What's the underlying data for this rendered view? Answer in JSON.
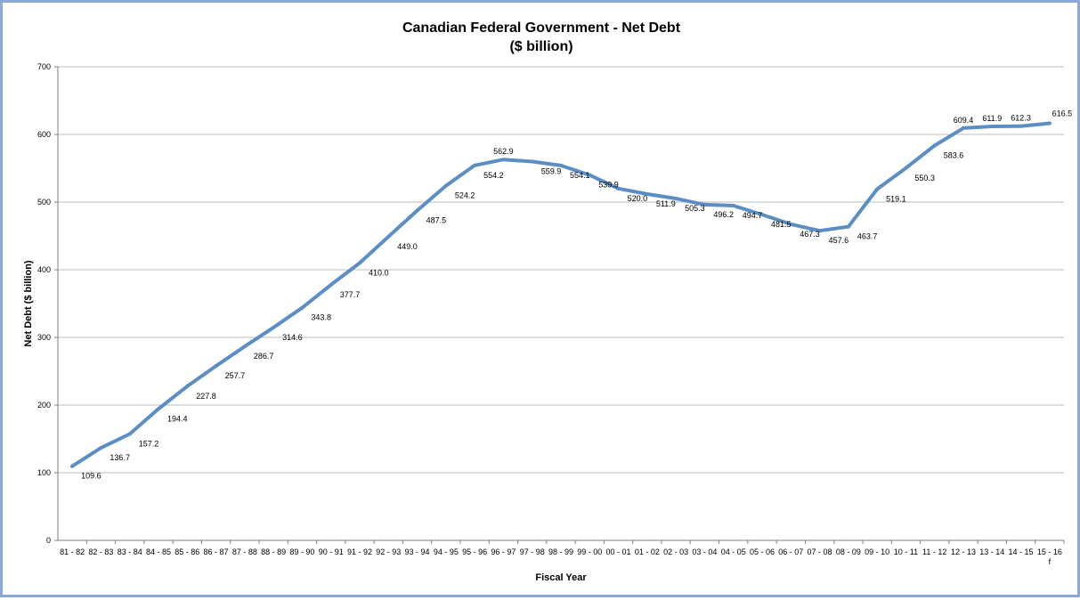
{
  "chart_data": {
    "type": "line",
    "title": "Canadian Federal Government - Net Debt",
    "subtitle": "($ billion)",
    "xlabel": "Fiscal Year",
    "ylabel": "Net Debt ($ billion)",
    "ylim": [
      0,
      700
    ],
    "yticks": [
      0,
      100,
      200,
      300,
      400,
      500,
      600,
      700
    ],
    "grid": true,
    "line_color": "#5b8ec4",
    "categories": [
      "81 - 82",
      "82 - 83",
      "83 - 84",
      "84 - 85",
      "85 - 86",
      "86 - 87",
      "87 - 88",
      "88 - 89",
      "89 - 90",
      "90 - 91",
      "91 - 92",
      "92 - 93",
      "93 - 94",
      "94 - 95",
      "95 - 96",
      "96 - 97",
      "97 - 98",
      "98 - 99",
      "99 - 00",
      "00 - 01",
      "01 - 02",
      "02 - 03",
      "03 - 04",
      "04 - 05",
      "05 - 06",
      "06 - 07",
      "07 - 08",
      "08 - 09",
      "09 - 10",
      "10 - 11",
      "11 - 12",
      "12 - 13",
      "13 - 14",
      "14 - 15",
      "15 - 16 f"
    ],
    "values": [
      109.6,
      136.7,
      157.2,
      194.4,
      227.8,
      257.7,
      286.7,
      314.6,
      343.8,
      377.7,
      410.0,
      449.0,
      487.5,
      524.2,
      554.2,
      562.9,
      559.9,
      554.1,
      539.9,
      520.0,
      511.9,
      505.3,
      496.2,
      494.7,
      481.5,
      467.3,
      457.6,
      463.7,
      519.1,
      550.3,
      583.6,
      609.4,
      611.9,
      612.3,
      616.5
    ],
    "value_labels": [
      "109.6",
      "136.7",
      "157.2",
      "194.4",
      "227.8",
      "257.7",
      "286.7",
      "314.6",
      "343.8",
      "377.7",
      "410.0",
      "449.0",
      "487.5",
      "524.2",
      "554.2",
      "562.9",
      "559.9",
      "554.1",
      "539.9",
      "520.0",
      "511.9",
      "505.3",
      "496.2",
      "494.7",
      "481.5",
      "467.3",
      "457.6",
      "463.7",
      "519.1",
      "550.3",
      "583.6",
      "609.4",
      "611.9",
      "612.3",
      "616.5"
    ]
  }
}
